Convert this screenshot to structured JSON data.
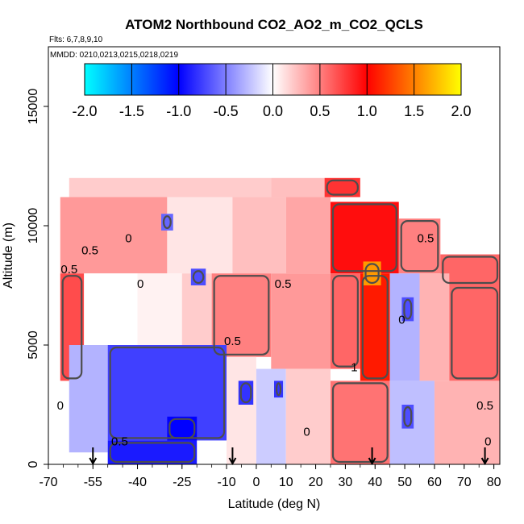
{
  "chart_data": {
    "type": "heatmap",
    "title": "ATOM2 Northbound CO2_AO2_m_CO2_QCLS",
    "subtitle_flights": "Flts: 6,7,8,9,10",
    "subtitle_dates": "MMDD: 0210,0213,0215,0218,0219",
    "xlabel": "Latitude (deg N)",
    "ylabel": "Altitude (m)",
    "xlim": [
      -70,
      82
    ],
    "ylim": [
      0,
      17500
    ],
    "x_ticks": [
      -70,
      -55,
      -40,
      -25,
      -10,
      0,
      10,
      20,
      30,
      40,
      50,
      60,
      70,
      80
    ],
    "y_ticks": [
      0,
      5000,
      10000,
      15000
    ],
    "colorbar": {
      "range": [
        -2.0,
        2.0
      ],
      "ticks": [
        "-2.0",
        "-1.5",
        "-1.0",
        "-0.5",
        "0.0",
        "0.5",
        "1.0",
        "1.5",
        "2.0"
      ],
      "colors": [
        "#00ffff",
        "#0000ff",
        "#ffffff",
        "#ff0000",
        "#ffff00"
      ]
    },
    "contour_labels": [
      {
        "text": "0",
        "x": -43,
        "y": 9300
      },
      {
        "text": "0",
        "x": -39,
        "y": 7400
      },
      {
        "text": "0.5",
        "x": -63,
        "y": 8000
      },
      {
        "text": "0.5",
        "x": -56,
        "y": 8800
      },
      {
        "text": "0.5",
        "x": 9,
        "y": 7400
      },
      {
        "text": "0.5",
        "x": -8,
        "y": 5000
      },
      {
        "text": "0.5",
        "x": 57,
        "y": 9300
      },
      {
        "text": "0.5",
        "x": -46,
        "y": 800
      },
      {
        "text": "0.5",
        "x": 77,
        "y": 2300
      },
      {
        "text": "0",
        "x": 49,
        "y": 5900
      },
      {
        "text": "0",
        "x": -66,
        "y": 2300
      },
      {
        "text": "0",
        "x": 17,
        "y": 1200
      },
      {
        "text": "0",
        "x": 78,
        "y": 800
      },
      {
        "text": "1",
        "x": 33,
        "y": 3900
      }
    ],
    "arrows_latitude": [
      -55,
      -8,
      39,
      77
    ],
    "regions": [
      {
        "lat": [
          -63,
          5
        ],
        "alt": [
          11200,
          12000
        ],
        "value": 0.2
      },
      {
        "lat": [
          5,
          23
        ],
        "alt": [
          11200,
          12000
        ],
        "value": 0.25
      },
      {
        "lat": [
          23,
          35
        ],
        "alt": [
          11200,
          12000
        ],
        "value": 0.8
      },
      {
        "lat": [
          -66,
          -30
        ],
        "alt": [
          8000,
          11200
        ],
        "value": 0.4
      },
      {
        "lat": [
          -30,
          -8
        ],
        "alt": [
          8000,
          11200
        ],
        "value": 0.1
      },
      {
        "lat": [
          -8,
          10
        ],
        "alt": [
          8000,
          11200
        ],
        "value": 0.25
      },
      {
        "lat": [
          10,
          25
        ],
        "alt": [
          8000,
          11200
        ],
        "value": 0.35
      },
      {
        "lat": [
          25,
          48
        ],
        "alt": [
          8000,
          11000
        ],
        "value": 0.95
      },
      {
        "lat": [
          48,
          62
        ],
        "alt": [
          8000,
          10300
        ],
        "value": 0.5
      },
      {
        "lat": [
          62,
          82
        ],
        "alt": [
          7500,
          8800
        ],
        "value": 0.6
      },
      {
        "lat": [
          -66,
          -58
        ],
        "alt": [
          3500,
          8000
        ],
        "value": 0.7
      },
      {
        "lat": [
          -58,
          -40
        ],
        "alt": [
          5000,
          8000
        ],
        "value": 0.0
      },
      {
        "lat": [
          -40,
          -25
        ],
        "alt": [
          5000,
          8000
        ],
        "value": 0.05
      },
      {
        "lat": [
          -25,
          -15
        ],
        "alt": [
          5000,
          8000
        ],
        "value": 0.2
      },
      {
        "lat": [
          -15,
          5
        ],
        "alt": [
          4500,
          8000
        ],
        "value": 0.5
      },
      {
        "lat": [
          5,
          25
        ],
        "alt": [
          4000,
          8000
        ],
        "value": 0.4
      },
      {
        "lat": [
          25,
          35
        ],
        "alt": [
          4000,
          8000
        ],
        "value": 0.6
      },
      {
        "lat": [
          35,
          45
        ],
        "alt": [
          3500,
          8000
        ],
        "value": 1.1
      },
      {
        "lat": [
          45,
          55
        ],
        "alt": [
          3500,
          8000
        ],
        "value": -0.3
      },
      {
        "lat": [
          55,
          65
        ],
        "alt": [
          3500,
          8000
        ],
        "value": 0.3
      },
      {
        "lat": [
          65,
          82
        ],
        "alt": [
          3500,
          7500
        ],
        "value": 0.6
      },
      {
        "lat": [
          -63,
          -50
        ],
        "alt": [
          500,
          5000
        ],
        "value": -0.3
      },
      {
        "lat": [
          -50,
          -10
        ],
        "alt": [
          1000,
          5000
        ],
        "value": -0.75
      },
      {
        "lat": [
          -10,
          0
        ],
        "alt": [
          0,
          4500
        ],
        "value": 0.1
      },
      {
        "lat": [
          0,
          10
        ],
        "alt": [
          0,
          4000
        ],
        "value": -0.2
      },
      {
        "lat": [
          10,
          25
        ],
        "alt": [
          0,
          4000
        ],
        "value": 0.2
      },
      {
        "lat": [
          25,
          45
        ],
        "alt": [
          0,
          3500
        ],
        "value": 0.55
      },
      {
        "lat": [
          45,
          60
        ],
        "alt": [
          0,
          3500
        ],
        "value": -0.25
      },
      {
        "lat": [
          60,
          82
        ],
        "alt": [
          0,
          3500
        ],
        "value": 0.3
      },
      {
        "lat": [
          -50,
          -20
        ],
        "alt": [
          0,
          1000
        ],
        "value": -0.9
      },
      {
        "lat": [
          -30,
          -20
        ],
        "alt": [
          1000,
          2000
        ],
        "value": -1.0
      },
      {
        "lat": [
          36,
          42
        ],
        "alt": [
          7500,
          8500
        ],
        "value": 1.6
      },
      {
        "lat": [
          -32,
          -28
        ],
        "alt": [
          9800,
          10500
        ],
        "value": -0.6
      },
      {
        "lat": [
          -22,
          -17
        ],
        "alt": [
          7500,
          8200
        ],
        "value": -0.7
      },
      {
        "lat": [
          -6,
          -1
        ],
        "alt": [
          2500,
          3500
        ],
        "value": -0.8
      },
      {
        "lat": [
          6,
          9
        ],
        "alt": [
          2800,
          3500
        ],
        "value": -0.8
      },
      {
        "lat": [
          49,
          53
        ],
        "alt": [
          6000,
          7000
        ],
        "value": -0.7
      },
      {
        "lat": [
          49,
          53
        ],
        "alt": [
          1500,
          2500
        ],
        "value": -0.7
      }
    ]
  }
}
